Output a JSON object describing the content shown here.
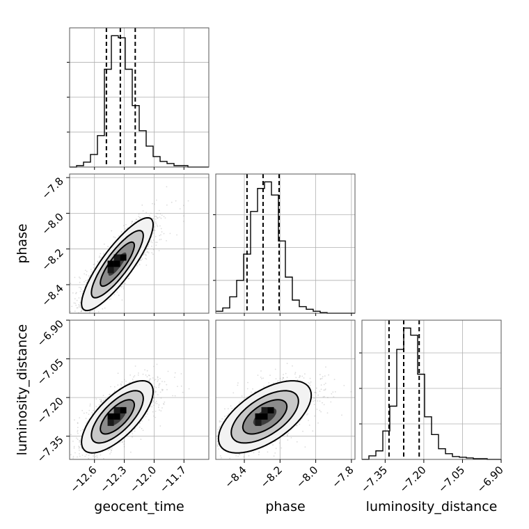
{
  "chart_data": {
    "type": "corner",
    "parameters": [
      {
        "name": "geocent_time",
        "label": "geocent_time",
        "range": [
          -12.85,
          -11.45
        ],
        "ticks": [
          -12.6,
          -12.3,
          -12.0,
          -11.7
        ],
        "tick_labels": [
          "−12.6",
          "−12.3",
          "−12.0",
          "−11.7"
        ],
        "quantiles": [
          -12.48,
          -12.34,
          -12.19
        ]
      },
      {
        "name": "phase",
        "label": "phase",
        "range": [
          -8.56,
          -7.78
        ],
        "ticks": [
          -8.4,
          -8.2,
          -8.0,
          -7.8
        ],
        "tick_labels": [
          "−8.4",
          "−8.2",
          "−8.0",
          "−7.8"
        ],
        "quantiles": [
          -8.385,
          -8.295,
          -8.205
        ]
      },
      {
        "name": "luminosity_distance",
        "label": "luminosity_distance",
        "range": [
          -7.44,
          -6.9
        ],
        "ticks": [
          -7.35,
          -7.2,
          -7.05,
          -6.9
        ],
        "tick_labels": [
          "−7.35",
          "−7.20",
          "−7.05",
          "−6.90"
        ],
        "quantiles": [
          -7.335,
          -7.278,
          -7.218
        ]
      }
    ],
    "histograms": [
      {
        "parameter": "geocent_time",
        "edges": [
          -12.85,
          -12.78,
          -12.71,
          -12.64,
          -12.57,
          -12.5,
          -12.43,
          -12.36,
          -12.29,
          -12.22,
          -12.15,
          -12.08,
          -12.01,
          -11.94,
          -11.87,
          -11.8,
          -11.73,
          -11.66,
          -11.59,
          -11.52,
          -11.45
        ],
        "counts": [
          0,
          2,
          7,
          18,
          45,
          140,
          188,
          185,
          140,
          88,
          52,
          30,
          15,
          8,
          5,
          2,
          2,
          0,
          0,
          0
        ]
      },
      {
        "parameter": "phase",
        "edges": [
          -8.56,
          -8.521,
          -8.482,
          -8.443,
          -8.404,
          -8.365,
          -8.326,
          -8.287,
          -8.248,
          -8.209,
          -8.17,
          -8.131,
          -8.092,
          -8.053,
          -8.014,
          -7.975,
          -7.936,
          -7.897,
          -7.858,
          -7.819,
          -7.78
        ],
        "counts": [
          3,
          8,
          25,
          50,
          90,
          155,
          190,
          200,
          180,
          110,
          55,
          20,
          10,
          6,
          3,
          1,
          0,
          0,
          0,
          0
        ]
      },
      {
        "parameter": "luminosity_distance",
        "edges": [
          -7.44,
          -7.413,
          -7.386,
          -7.359,
          -7.332,
          -7.305,
          -7.278,
          -7.251,
          -7.224,
          -7.197,
          -7.17,
          -7.143,
          -7.116,
          -7.089,
          -7.062,
          -7.035,
          -7.008,
          -6.981,
          -6.954,
          -6.927,
          -6.9
        ],
        "counts": [
          0,
          5,
          12,
          40,
          75,
          155,
          185,
          175,
          120,
          60,
          35,
          15,
          8,
          4,
          3,
          2,
          1,
          1,
          0,
          0
        ]
      }
    ],
    "pairs": [
      {
        "x": "geocent_time",
        "y": "phase",
        "mean": [
          -12.37,
          -8.285
        ],
        "sd": [
          0.18,
          0.13
        ],
        "rho": 0.85
      },
      {
        "x": "geocent_time",
        "y": "luminosity_distance",
        "mean": [
          -12.37,
          -7.275
        ],
        "sd": [
          0.18,
          0.07
        ],
        "rho": 0.7
      },
      {
        "x": "phase",
        "y": "luminosity_distance",
        "mean": [
          -8.285,
          -7.275
        ],
        "sd": [
          0.13,
          0.07
        ],
        "rho": 0.6
      }
    ],
    "quantiles_shown": [
      0.16,
      0.5,
      0.84
    ],
    "grid": true
  }
}
